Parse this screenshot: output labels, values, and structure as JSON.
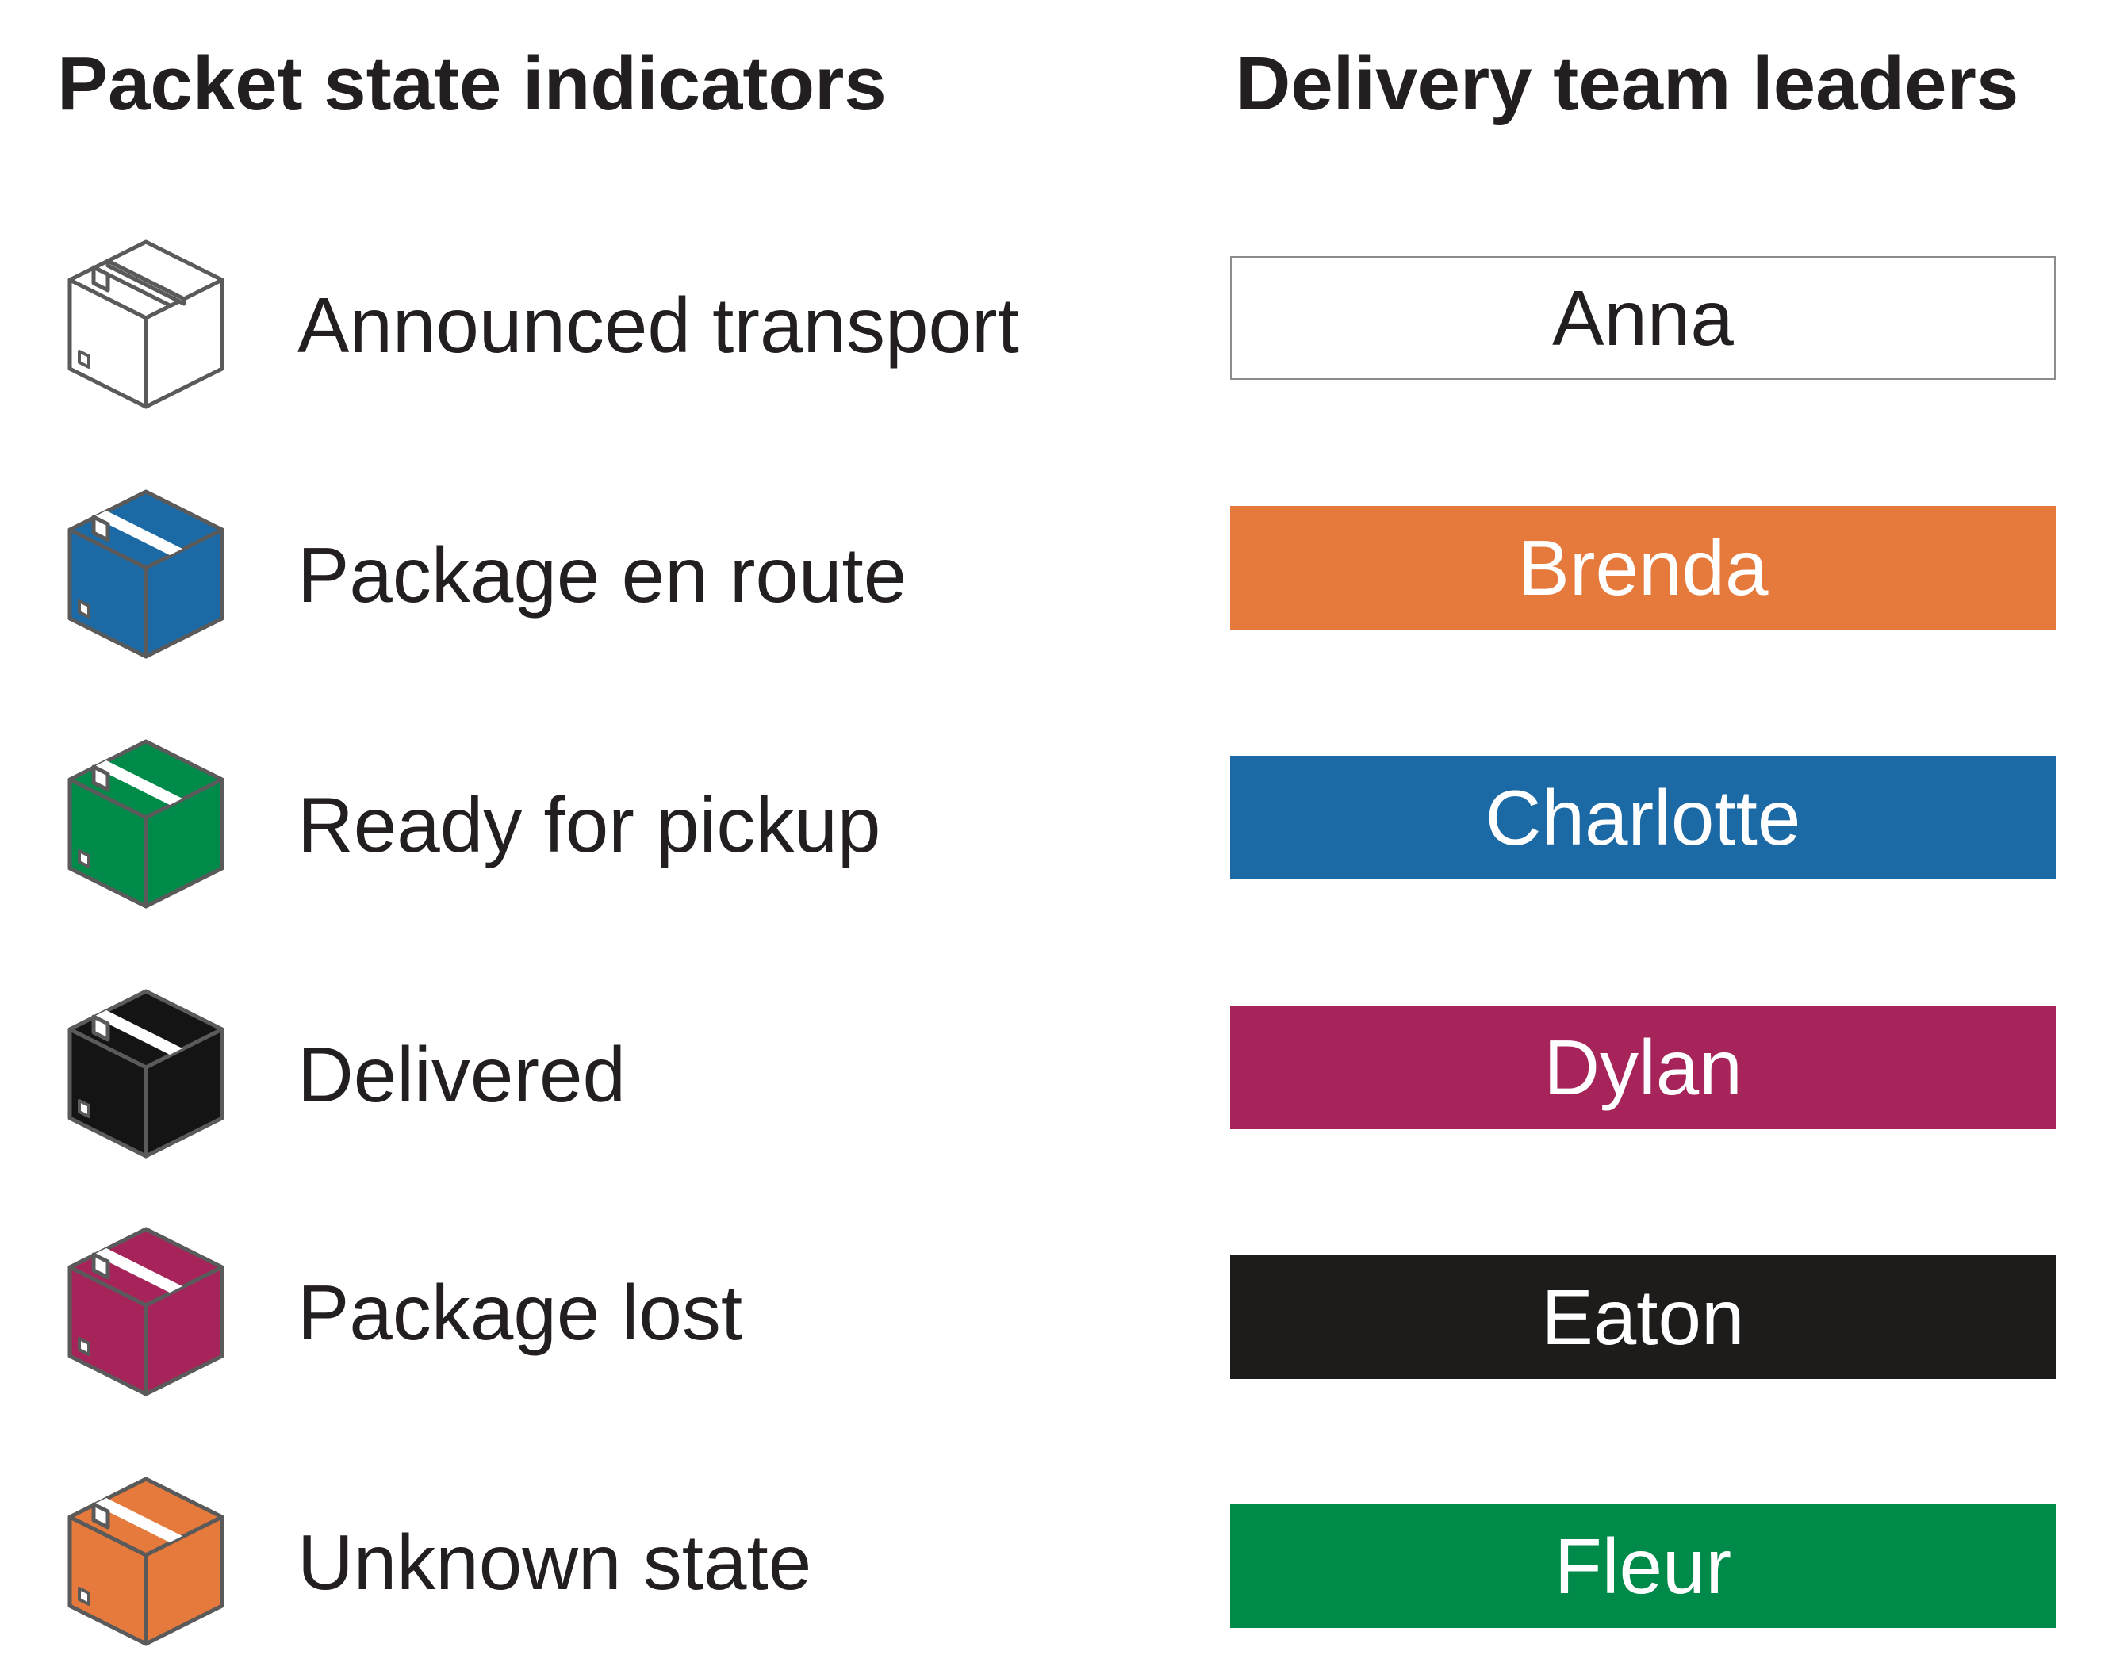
{
  "headings": {
    "states": "Packet state indicators",
    "leaders": "Delivery team leaders"
  },
  "states": [
    {
      "label": "Announced transport",
      "icon": "package-outline-icon",
      "color": "#ffffff"
    },
    {
      "label": "Package en route",
      "icon": "package-blue-icon",
      "color": "#1b6aa5"
    },
    {
      "label": "Ready for pickup",
      "icon": "package-green-icon",
      "color": "#008a4a"
    },
    {
      "label": "Delivered",
      "icon": "package-black-icon",
      "color": "#141414"
    },
    {
      "label": "Package lost",
      "icon": "package-magenta-icon",
      "color": "#a6245a"
    },
    {
      "label": "Unknown state",
      "icon": "package-orange-icon",
      "color": "#e67a3c"
    }
  ],
  "leaders": [
    {
      "name": "Anna",
      "color": "#ffffff",
      "outlined": true
    },
    {
      "name": "Brenda",
      "color": "#e67a3c"
    },
    {
      "name": "Charlotte",
      "color": "#1b6aa5"
    },
    {
      "name": "Dylan",
      "color": "#a6245a"
    },
    {
      "name": "Eaton",
      "color": "#1e1b1b"
    },
    {
      "name": "Fleur",
      "color": "#008a4a"
    }
  ]
}
